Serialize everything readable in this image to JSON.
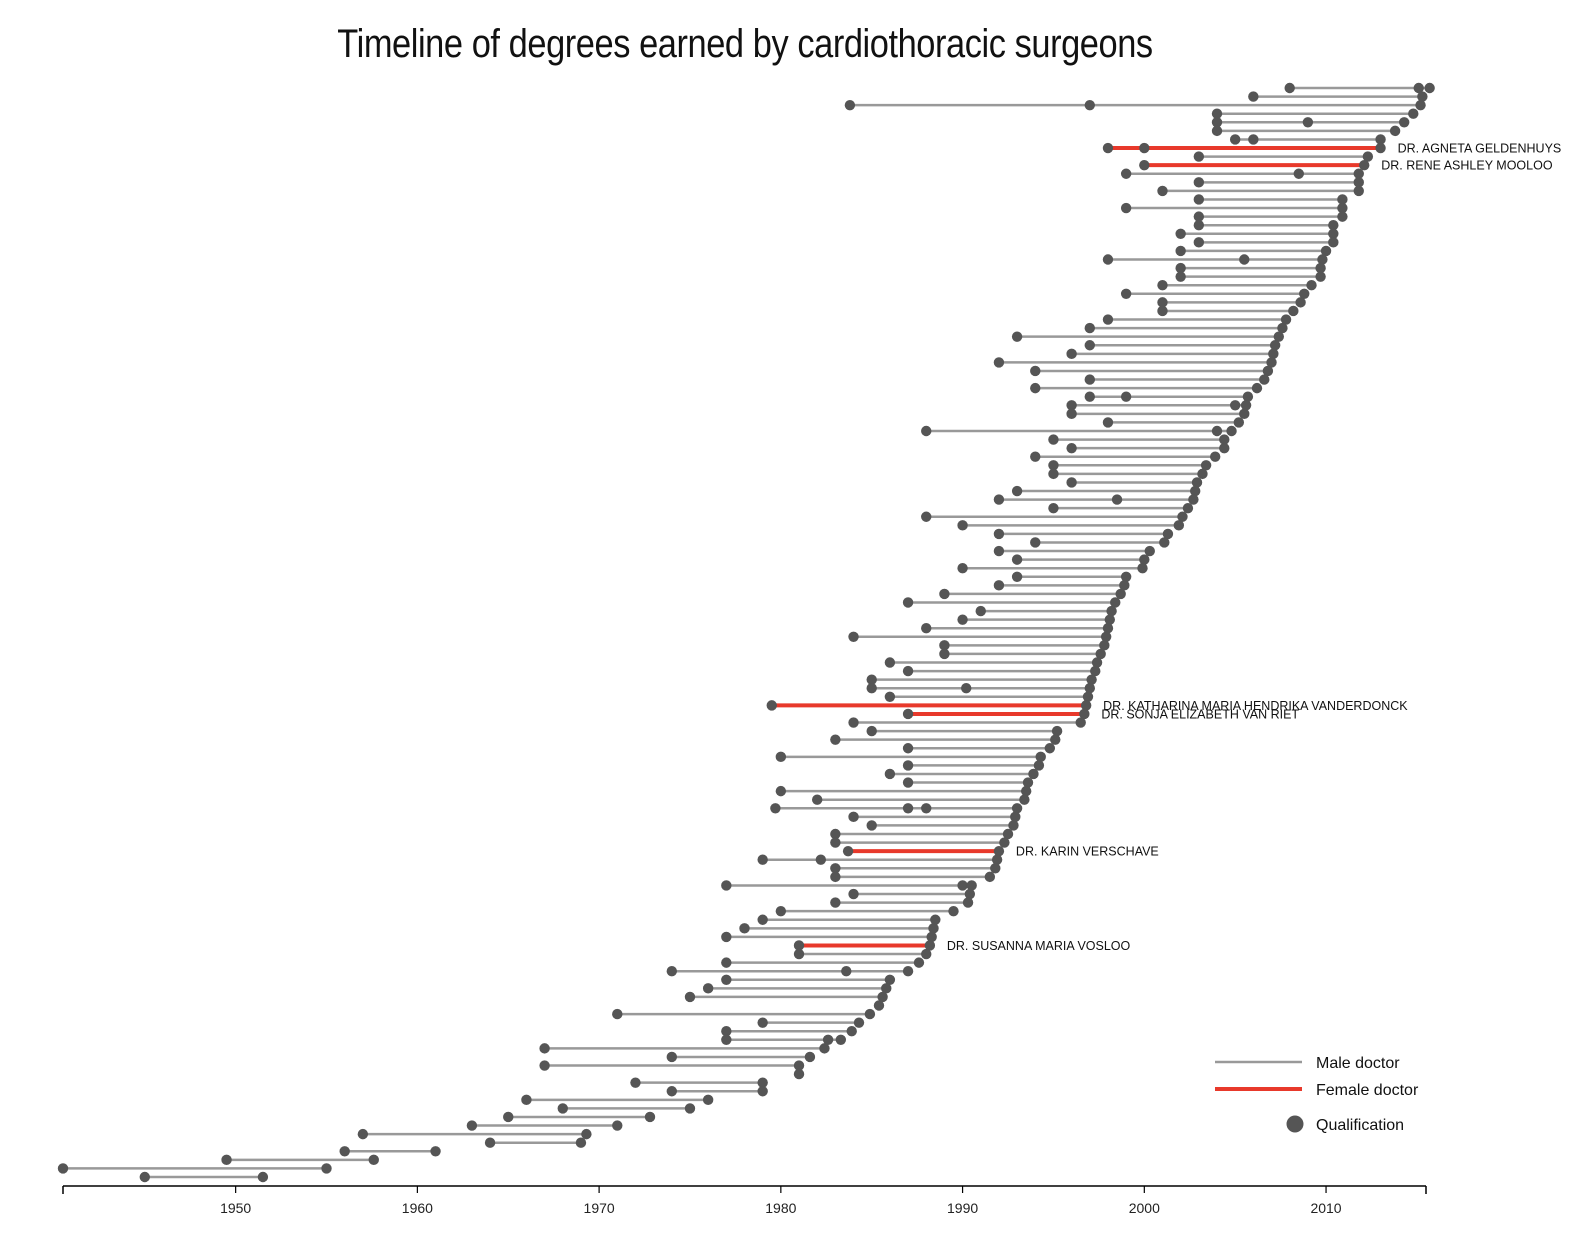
{
  "chart_data": {
    "type": "dumbbell",
    "title": "Timeline of degrees earned by cardiothoracic surgeons",
    "xlabel": "",
    "ylabel": "",
    "xlim": [
      1940.5,
      2015.5
    ],
    "x_ticks": [
      1950,
      1960,
      1970,
      1980,
      1990,
      2000,
      2010
    ],
    "grid": false,
    "legend": {
      "position": "bottom-right",
      "entries": [
        {
          "label": "Male doctor",
          "symbol": "line",
          "color": "#999999"
        },
        {
          "label": "Female doctor",
          "symbol": "line",
          "color": "#e8392b"
        },
        {
          "label": "Qualification",
          "symbol": "dot",
          "color": "#555555"
        }
      ]
    },
    "colors": {
      "male": "#999999",
      "female": "#e8392b",
      "dot": "#555555"
    },
    "doctors_top_to_bottom": [
      {
        "years": [
          2008,
          2015.1,
          2015.7
        ],
        "gender": "male",
        "name": ""
      },
      {
        "years": [
          2006,
          2015.3
        ],
        "gender": "male",
        "name": ""
      },
      {
        "years": [
          1983.8,
          1997,
          2015.2
        ],
        "gender": "male",
        "name": ""
      },
      {
        "years": [
          2004,
          2014.8
        ],
        "gender": "male",
        "name": ""
      },
      {
        "years": [
          2004,
          2009,
          2014.3
        ],
        "gender": "male",
        "name": ""
      },
      {
        "years": [
          2004,
          2013.8
        ],
        "gender": "male",
        "name": ""
      },
      {
        "years": [
          2005,
          2006,
          2013
        ],
        "gender": "male",
        "name": ""
      },
      {
        "years": [
          1998,
          2000,
          2013
        ],
        "gender": "female",
        "name": "DR. AGNETA GELDENHUYS"
      },
      {
        "years": [
          2003,
          2012.3
        ],
        "gender": "male",
        "name": ""
      },
      {
        "years": [
          2000,
          2012.1
        ],
        "gender": "female",
        "name": "DR. RENE ASHLEY MOOLOO"
      },
      {
        "years": [
          1999,
          2008.5,
          2011.8
        ],
        "gender": "male",
        "name": ""
      },
      {
        "years": [
          2003,
          2011.8
        ],
        "gender": "male",
        "name": ""
      },
      {
        "years": [
          2001,
          2011.8
        ],
        "gender": "male",
        "name": ""
      },
      {
        "years": [
          2003,
          2010.9
        ],
        "gender": "male",
        "name": ""
      },
      {
        "years": [
          1999,
          2010.9
        ],
        "gender": "male",
        "name": ""
      },
      {
        "years": [
          2003,
          2010.9
        ],
        "gender": "male",
        "name": ""
      },
      {
        "years": [
          2003,
          2010.4
        ],
        "gender": "male",
        "name": ""
      },
      {
        "years": [
          2002,
          2010.4
        ],
        "gender": "male",
        "name": ""
      },
      {
        "years": [
          2003,
          2010.4
        ],
        "gender": "male",
        "name": ""
      },
      {
        "years": [
          2002,
          2010
        ],
        "gender": "male",
        "name": ""
      },
      {
        "years": [
          1998,
          2005.5,
          2009.8
        ],
        "gender": "male",
        "name": ""
      },
      {
        "years": [
          2002,
          2009.7
        ],
        "gender": "male",
        "name": ""
      },
      {
        "years": [
          2002,
          2009.7
        ],
        "gender": "male",
        "name": ""
      },
      {
        "years": [
          2001,
          2009.2
        ],
        "gender": "male",
        "name": ""
      },
      {
        "years": [
          1999,
          2008.8
        ],
        "gender": "male",
        "name": ""
      },
      {
        "years": [
          2001,
          2008.6
        ],
        "gender": "male",
        "name": ""
      },
      {
        "years": [
          2001,
          2008.2
        ],
        "gender": "male",
        "name": ""
      },
      {
        "years": [
          1998,
          2007.8
        ],
        "gender": "male",
        "name": ""
      },
      {
        "years": [
          1997,
          2007.6
        ],
        "gender": "male",
        "name": ""
      },
      {
        "years": [
          1993,
          2007.4
        ],
        "gender": "male",
        "name": ""
      },
      {
        "years": [
          1997,
          2007.2
        ],
        "gender": "male",
        "name": ""
      },
      {
        "years": [
          1996,
          2007.1
        ],
        "gender": "male",
        "name": ""
      },
      {
        "years": [
          1992,
          2007.0
        ],
        "gender": "male",
        "name": ""
      },
      {
        "years": [
          1994,
          2006.8
        ],
        "gender": "male",
        "name": ""
      },
      {
        "years": [
          1997,
          2006.6
        ],
        "gender": "male",
        "name": ""
      },
      {
        "years": [
          1994,
          2006.2
        ],
        "gender": "male",
        "name": ""
      },
      {
        "years": [
          1997,
          1999,
          2005.7
        ],
        "gender": "male",
        "name": ""
      },
      {
        "years": [
          1996,
          2005,
          2005.6
        ],
        "gender": "male",
        "name": ""
      },
      {
        "years": [
          1996,
          2005.5
        ],
        "gender": "male",
        "name": ""
      },
      {
        "years": [
          1998,
          2005.2
        ],
        "gender": "male",
        "name": ""
      },
      {
        "years": [
          1988,
          2004,
          2004.8
        ],
        "gender": "male",
        "name": ""
      },
      {
        "years": [
          1995,
          2004.4
        ],
        "gender": "male",
        "name": ""
      },
      {
        "years": [
          1996,
          2004.4
        ],
        "gender": "male",
        "name": ""
      },
      {
        "years": [
          1994,
          2003.9
        ],
        "gender": "male",
        "name": ""
      },
      {
        "years": [
          1995,
          2003.4
        ],
        "gender": "male",
        "name": ""
      },
      {
        "years": [
          1995,
          2003.2
        ],
        "gender": "male",
        "name": ""
      },
      {
        "years": [
          1996,
          2002.9
        ],
        "gender": "male",
        "name": ""
      },
      {
        "years": [
          1993,
          2002.8
        ],
        "gender": "male",
        "name": ""
      },
      {
        "years": [
          1992,
          1998.5,
          2002.7
        ],
        "gender": "male",
        "name": ""
      },
      {
        "years": [
          1995,
          2002.4
        ],
        "gender": "male",
        "name": ""
      },
      {
        "years": [
          1988,
          2002.1
        ],
        "gender": "male",
        "name": ""
      },
      {
        "years": [
          1990,
          2001.9
        ],
        "gender": "male",
        "name": ""
      },
      {
        "years": [
          1992,
          2001.3
        ],
        "gender": "male",
        "name": ""
      },
      {
        "years": [
          1994,
          2001.1
        ],
        "gender": "male",
        "name": ""
      },
      {
        "years": [
          1992,
          2000.3
        ],
        "gender": "male",
        "name": ""
      },
      {
        "years": [
          1993,
          2000
        ],
        "gender": "male",
        "name": ""
      },
      {
        "years": [
          1990,
          1999.9
        ],
        "gender": "male",
        "name": ""
      },
      {
        "years": [
          1993,
          1999
        ],
        "gender": "male",
        "name": ""
      },
      {
        "years": [
          1992,
          1998.9
        ],
        "gender": "male",
        "name": ""
      },
      {
        "years": [
          1989,
          1998.7
        ],
        "gender": "male",
        "name": ""
      },
      {
        "years": [
          1987,
          1998.4
        ],
        "gender": "male",
        "name": ""
      },
      {
        "years": [
          1991,
          1998.2
        ],
        "gender": "male",
        "name": ""
      },
      {
        "years": [
          1990,
          1998.1
        ],
        "gender": "male",
        "name": ""
      },
      {
        "years": [
          1988,
          1998.0
        ],
        "gender": "male",
        "name": ""
      },
      {
        "years": [
          1984,
          1997.9
        ],
        "gender": "male",
        "name": ""
      },
      {
        "years": [
          1989,
          1997.8
        ],
        "gender": "male",
        "name": ""
      },
      {
        "years": [
          1989,
          1997.6
        ],
        "gender": "male",
        "name": ""
      },
      {
        "years": [
          1986,
          1997.4
        ],
        "gender": "male",
        "name": ""
      },
      {
        "years": [
          1987,
          1997.3
        ],
        "gender": "male",
        "name": ""
      },
      {
        "years": [
          1985,
          1997.1
        ],
        "gender": "male",
        "name": ""
      },
      {
        "years": [
          1985,
          1990.2,
          1997.0
        ],
        "gender": "male",
        "name": ""
      },
      {
        "years": [
          1986,
          1996.9
        ],
        "gender": "male",
        "name": ""
      },
      {
        "years": [
          1979.5,
          1996.8
        ],
        "gender": "female",
        "name": "DR. KATHARINA MARIA HENDRIKA VANDERDONCK"
      },
      {
        "years": [
          1987,
          1996.7
        ],
        "gender": "female",
        "name": "DR. SONJA ELIZABETH VAN RIET"
      },
      {
        "years": [
          1984,
          1996.5
        ],
        "gender": "male",
        "name": ""
      },
      {
        "years": [
          1985,
          1995.2
        ],
        "gender": "male",
        "name": ""
      },
      {
        "years": [
          1983,
          1995.1
        ],
        "gender": "male",
        "name": ""
      },
      {
        "years": [
          1987,
          1994.8
        ],
        "gender": "male",
        "name": ""
      },
      {
        "years": [
          1980,
          1994.3
        ],
        "gender": "male",
        "name": ""
      },
      {
        "years": [
          1987,
          1994.2
        ],
        "gender": "male",
        "name": ""
      },
      {
        "years": [
          1986,
          1993.9
        ],
        "gender": "male",
        "name": ""
      },
      {
        "years": [
          1987,
          1993.6
        ],
        "gender": "male",
        "name": ""
      },
      {
        "years": [
          1980,
          1993.5
        ],
        "gender": "male",
        "name": ""
      },
      {
        "years": [
          1982,
          1993.4
        ],
        "gender": "male",
        "name": ""
      },
      {
        "years": [
          1979.7,
          1987,
          1988,
          1993
        ],
        "gender": "male",
        "name": ""
      },
      {
        "years": [
          1984,
          1992.9
        ],
        "gender": "male",
        "name": ""
      },
      {
        "years": [
          1985,
          1992.8
        ],
        "gender": "male",
        "name": ""
      },
      {
        "years": [
          1983,
          1992.5
        ],
        "gender": "male",
        "name": ""
      },
      {
        "years": [
          1983,
          1992.3
        ],
        "gender": "male",
        "name": ""
      },
      {
        "years": [
          1983.7,
          1992
        ],
        "gender": "female",
        "name": "DR. KARIN VERSCHAVE"
      },
      {
        "years": [
          1979,
          1982.2,
          1991.9
        ],
        "gender": "male",
        "name": ""
      },
      {
        "years": [
          1983,
          1991.8
        ],
        "gender": "male",
        "name": ""
      },
      {
        "years": [
          1983,
          1991.5
        ],
        "gender": "male",
        "name": ""
      },
      {
        "years": [
          1977,
          1990,
          1990.5
        ],
        "gender": "male",
        "name": ""
      },
      {
        "years": [
          1984,
          1990.4
        ],
        "gender": "male",
        "name": ""
      },
      {
        "years": [
          1983,
          1990.3
        ],
        "gender": "male",
        "name": ""
      },
      {
        "years": [
          1980,
          1989.5
        ],
        "gender": "male",
        "name": ""
      },
      {
        "years": [
          1979,
          1988.5
        ],
        "gender": "male",
        "name": ""
      },
      {
        "years": [
          1978,
          1988.4
        ],
        "gender": "male",
        "name": ""
      },
      {
        "years": [
          1977,
          1988.3
        ],
        "gender": "male",
        "name": ""
      },
      {
        "years": [
          1981,
          1988.2
        ],
        "gender": "female",
        "name": "DR. SUSANNA MARIA VOSLOO"
      },
      {
        "years": [
          1981,
          1988
        ],
        "gender": "male",
        "name": ""
      },
      {
        "years": [
          1977,
          1987.6
        ],
        "gender": "male",
        "name": ""
      },
      {
        "years": [
          1974,
          1983.6,
          1987
        ],
        "gender": "male",
        "name": ""
      },
      {
        "years": [
          1977,
          1986
        ],
        "gender": "male",
        "name": ""
      },
      {
        "years": [
          1976,
          1985.8
        ],
        "gender": "male",
        "name": ""
      },
      {
        "years": [
          1975,
          1985.6
        ],
        "gender": "male",
        "name": ""
      },
      {
        "years": [
          1985.4
        ],
        "gender": "male",
        "name": ""
      },
      {
        "years": [
          1971,
          1984.9
        ],
        "gender": "male",
        "name": ""
      },
      {
        "years": [
          1979,
          1984.3
        ],
        "gender": "male",
        "name": ""
      },
      {
        "years": [
          1977,
          1983.9
        ],
        "gender": "male",
        "name": ""
      },
      {
        "years": [
          1977,
          1982.6,
          1983.3
        ],
        "gender": "male",
        "name": ""
      },
      {
        "years": [
          1967,
          1982.4
        ],
        "gender": "male",
        "name": ""
      },
      {
        "years": [
          1974,
          1981.6
        ],
        "gender": "male",
        "name": ""
      },
      {
        "years": [
          1967,
          1981
        ],
        "gender": "male",
        "name": ""
      },
      {
        "years": [
          1981
        ],
        "gender": "male",
        "name": ""
      },
      {
        "years": [
          1972,
          1979
        ],
        "gender": "male",
        "name": ""
      },
      {
        "years": [
          1974,
          1979
        ],
        "gender": "male",
        "name": ""
      },
      {
        "years": [
          1966,
          1976
        ],
        "gender": "male",
        "name": ""
      },
      {
        "years": [
          1968,
          1975
        ],
        "gender": "male",
        "name": ""
      },
      {
        "years": [
          1965,
          1972.8
        ],
        "gender": "male",
        "name": ""
      },
      {
        "years": [
          1963,
          1971
        ],
        "gender": "male",
        "name": ""
      },
      {
        "years": [
          1957,
          1969.3
        ],
        "gender": "male",
        "name": ""
      },
      {
        "years": [
          1964,
          1969
        ],
        "gender": "male",
        "name": ""
      },
      {
        "years": [
          1956,
          1961
        ],
        "gender": "male",
        "name": ""
      },
      {
        "years": [
          1949.5,
          1957.6
        ],
        "gender": "male",
        "name": ""
      },
      {
        "years": [
          1940.5,
          1955
        ],
        "gender": "male",
        "name": ""
      },
      {
        "years": [
          1945,
          1951.5
        ],
        "gender": "male",
        "name": ""
      }
    ]
  }
}
